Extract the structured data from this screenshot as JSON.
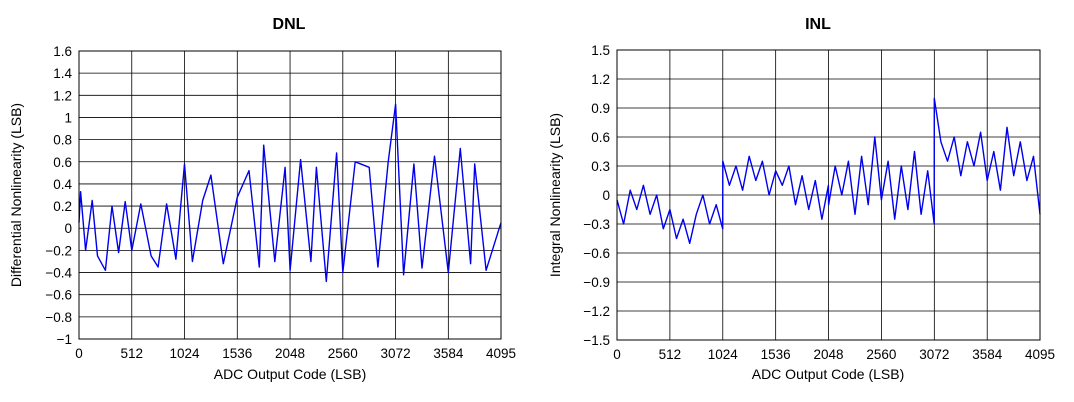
{
  "colors": {
    "series": "#0000ee",
    "frame": "#000000"
  },
  "chart_data": [
    {
      "type": "line",
      "title": "DNL",
      "xlabel": "ADC Output Code (LSB)",
      "ylabel": "Differential Nonlinearity (LSB)",
      "xlim": [
        0,
        4095
      ],
      "ylim": [
        -1,
        1.6
      ],
      "grid": true,
      "xticks": [
        0,
        512,
        1024,
        1536,
        2048,
        2560,
        3072,
        3584,
        4095
      ],
      "xtick_labels": [
        "0",
        "512",
        "1024",
        "1536",
        "2048",
        "2560",
        "3072",
        "3584",
        "4095"
      ],
      "yticks": [
        -1,
        -0.8,
        -0.6,
        -0.4,
        -0.2,
        0,
        0.2,
        0.4,
        0.6,
        0.8,
        1,
        1.2,
        1.4,
        1.6
      ],
      "ytick_labels": [
        "−1",
        "−0.8",
        "−0.6",
        "−0.4",
        "−0.2",
        "0",
        "0.2",
        "0.4",
        "0.6",
        "0.8",
        "1",
        "1.2",
        "1.4",
        "1.6"
      ],
      "series": [
        {
          "x": [
            0,
            16,
            64,
            128,
            180,
            256,
            320,
            384,
            448,
            512,
            600,
            700,
            768,
            850,
            940,
            1024,
            1100,
            1200,
            1280,
            1400,
            1536,
            1650,
            1750,
            1792,
            1900,
            2000,
            2048,
            2150,
            2250,
            2304,
            2400,
            2500,
            2560,
            2680,
            2816,
            2900,
            3000,
            3072,
            3150,
            3250,
            3328,
            3450,
            3584,
            3700,
            3800,
            3840,
            3950,
            4095
          ],
          "y": [
            0.05,
            0.33,
            -0.2,
            0.25,
            -0.25,
            -0.38,
            0.2,
            -0.22,
            0.24,
            -0.2,
            0.22,
            -0.25,
            -0.35,
            0.22,
            -0.28,
            0.58,
            -0.3,
            0.25,
            0.48,
            -0.32,
            0.28,
            0.52,
            -0.35,
            0.75,
            -0.3,
            0.55,
            -0.38,
            0.62,
            -0.3,
            0.55,
            -0.48,
            0.68,
            -0.4,
            0.6,
            0.55,
            -0.35,
            0.6,
            1.12,
            -0.42,
            0.58,
            -0.36,
            0.65,
            -0.4,
            0.72,
            -0.32,
            0.58,
            -0.38,
            0.05
          ]
        }
      ]
    },
    {
      "type": "line",
      "title": "INL",
      "xlabel": "ADC Output Code (LSB)",
      "ylabel": "Integral Nonlinearity (LSB)",
      "xlim": [
        0,
        4095
      ],
      "ylim": [
        -1.5,
        1.5
      ],
      "grid": true,
      "xticks": [
        0,
        512,
        1024,
        1536,
        2048,
        2560,
        3072,
        3584,
        4095
      ],
      "xtick_labels": [
        "0",
        "512",
        "1024",
        "1536",
        "2048",
        "2560",
        "3072",
        "3584",
        "4095"
      ],
      "yticks": [
        -1.5,
        -1.2,
        -0.9,
        -0.6,
        -0.3,
        0,
        0.3,
        0.6,
        0.9,
        1.2,
        1.5
      ],
      "ytick_labels": [
        "−1.5",
        "−1.2",
        "−0.9",
        "−0.6",
        "−0.3",
        "0",
        "0.3",
        "0.6",
        "0.9",
        "1.2",
        "1.5"
      ],
      "series": [
        {
          "x": [
            0,
            64,
            128,
            192,
            256,
            320,
            384,
            448,
            512,
            576,
            640,
            704,
            768,
            832,
            896,
            960,
            1023,
            1024,
            1088,
            1152,
            1216,
            1280,
            1344,
            1408,
            1472,
            1536,
            1600,
            1664,
            1728,
            1792,
            1856,
            1920,
            1984,
            2047,
            2048,
            2112,
            2176,
            2240,
            2304,
            2368,
            2432,
            2496,
            2560,
            2624,
            2688,
            2752,
            2816,
            2880,
            2944,
            3008,
            3071,
            3072,
            3136,
            3200,
            3264,
            3328,
            3392,
            3456,
            3520,
            3584,
            3648,
            3712,
            3776,
            3840,
            3904,
            3968,
            4032,
            4095
          ],
          "y": [
            -0.05,
            -0.3,
            0.05,
            -0.15,
            0.1,
            -0.2,
            0.0,
            -0.35,
            -0.15,
            -0.45,
            -0.25,
            -0.5,
            -0.2,
            0.0,
            -0.3,
            -0.1,
            -0.35,
            0.35,
            0.1,
            0.3,
            0.05,
            0.4,
            0.15,
            0.35,
            0.0,
            0.25,
            0.1,
            0.3,
            -0.1,
            0.2,
            -0.15,
            0.15,
            -0.25,
            0.1,
            -0.1,
            0.3,
            0.0,
            0.35,
            -0.2,
            0.4,
            -0.1,
            0.6,
            -0.05,
            0.35,
            -0.25,
            0.3,
            -0.15,
            0.45,
            -0.2,
            0.25,
            -0.3,
            1.0,
            0.55,
            0.35,
            0.6,
            0.2,
            0.55,
            0.3,
            0.65,
            0.15,
            0.45,
            0.05,
            0.7,
            0.2,
            0.55,
            0.15,
            0.4,
            -0.2
          ]
        }
      ]
    }
  ]
}
